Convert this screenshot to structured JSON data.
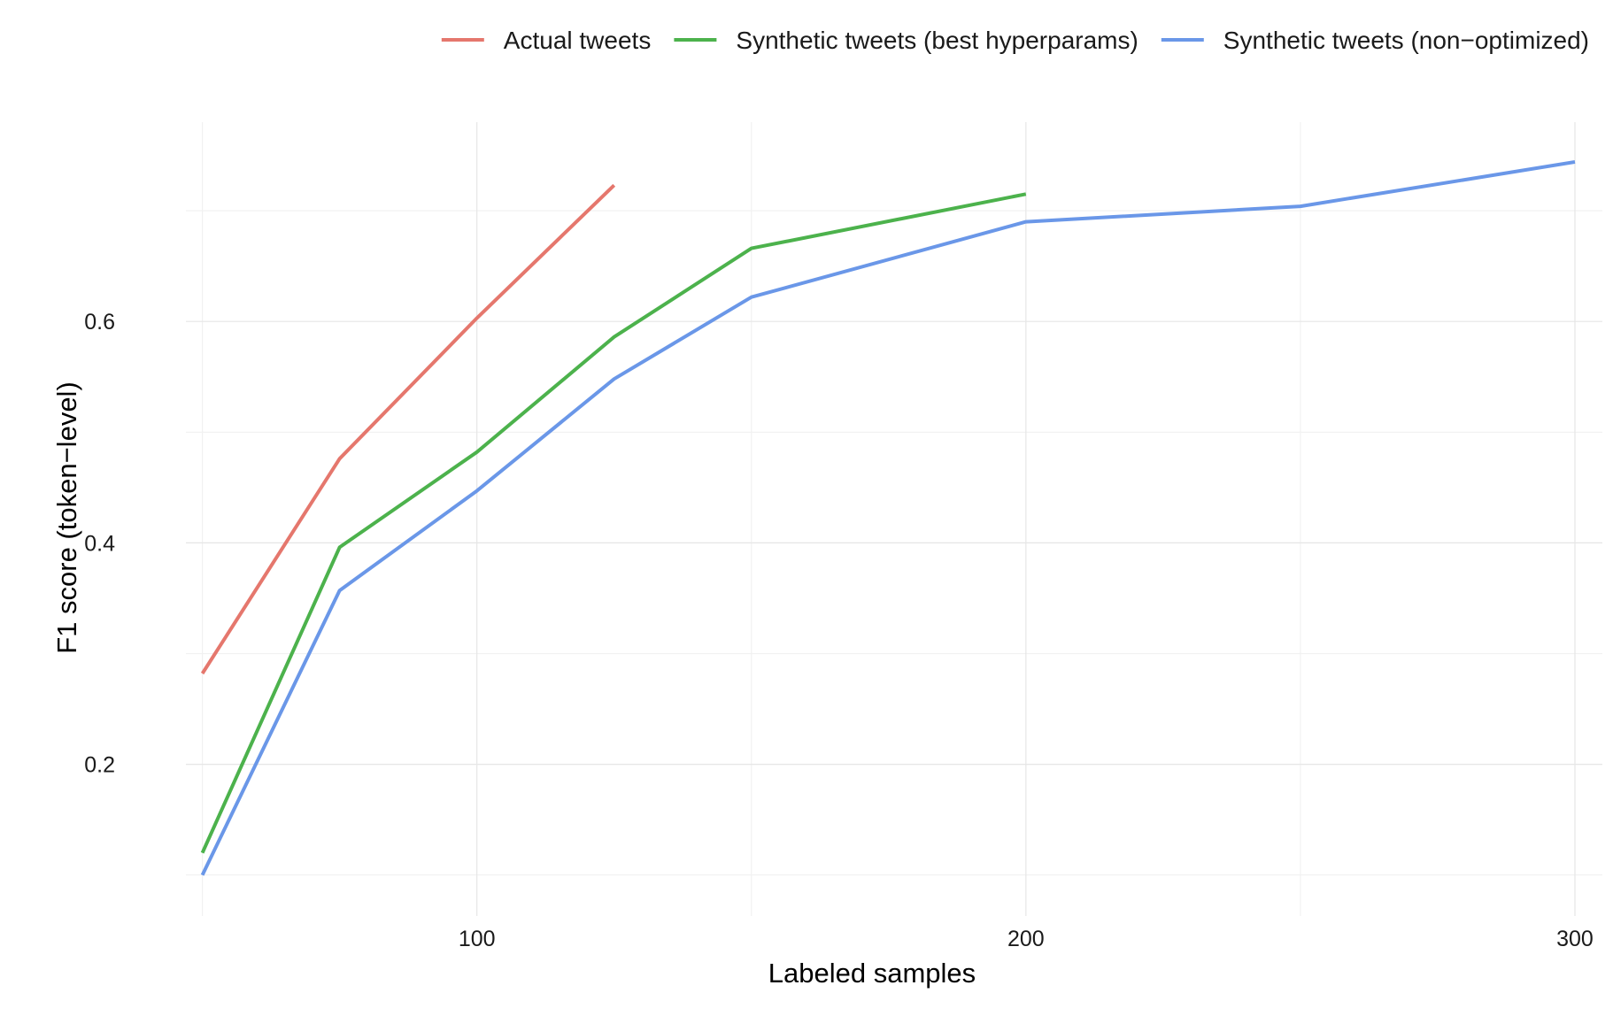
{
  "chart_data": {
    "type": "line",
    "title": "",
    "xlabel": "Labeled samples",
    "ylabel": "F1 score (token−level)",
    "xlim": [
      47,
      305
    ],
    "ylim": [
      0.063,
      0.78
    ],
    "x_ticks": [
      100,
      200,
      300
    ],
    "x_tick_labels": [
      "100",
      "200",
      "300"
    ],
    "x_minor_ticks": [
      50,
      150,
      250
    ],
    "y_ticks": [
      0.2,
      0.4,
      0.6
    ],
    "y_tick_labels": [
      "0.2",
      "0.4",
      "0.6"
    ],
    "y_minor_ticks": [
      0.1,
      0.3,
      0.5,
      0.7
    ],
    "grid": true,
    "legend_position": "top",
    "series": [
      {
        "name": "Actual tweets",
        "color": "#E5776D",
        "x": [
          50,
          75,
          100,
          125
        ],
        "y": [
          0.282,
          0.476,
          0.603,
          0.723
        ]
      },
      {
        "name": "Synthetic tweets (best hyperparams)",
        "color": "#4CB24C",
        "x": [
          50,
          75,
          100,
          125,
          150,
          200
        ],
        "y": [
          0.12,
          0.396,
          0.482,
          0.586,
          0.666,
          0.715
        ]
      },
      {
        "name": "Synthetic tweets (non−optimized)",
        "color": "#6A97E8",
        "x": [
          50,
          75,
          100,
          125,
          150,
          200,
          250,
          300
        ],
        "y": [
          0.1,
          0.357,
          0.447,
          0.548,
          0.622,
          0.69,
          0.704,
          0.744
        ]
      }
    ]
  }
}
